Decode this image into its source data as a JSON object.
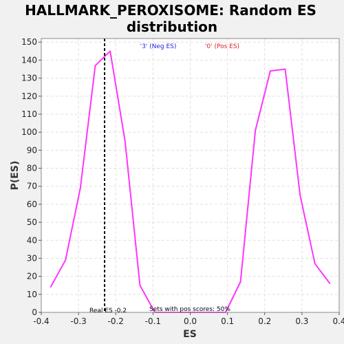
{
  "chart_data": {
    "type": "line",
    "title_line1": "HALLMARK_PEROXISOME: Random ES",
    "title_line2": "distribution",
    "xlabel": "ES",
    "ylabel": "P(ES)",
    "xlim": [
      -0.4,
      0.4
    ],
    "ylim": [
      0,
      152
    ],
    "x_ticks": [
      -0.4,
      -0.3,
      -0.2,
      -0.1,
      0.0,
      0.1,
      0.2,
      0.3,
      0.4
    ],
    "x_tick_labels": [
      "-0.4",
      "-0.3",
      "-0.2",
      "-0.1",
      "0.0",
      "0.1",
      "0.2",
      "0.3",
      "0.4"
    ],
    "y_ticks": [
      0,
      10,
      20,
      30,
      40,
      50,
      60,
      70,
      80,
      90,
      100,
      110,
      120,
      130,
      140,
      150
    ],
    "y_tick_labels": [
      "0",
      "10",
      "20",
      "30",
      "40",
      "50",
      "60",
      "70",
      "80",
      "90",
      "100",
      "110",
      "120",
      "130",
      "140",
      "150"
    ],
    "grid": true,
    "line_color": "#ff33ff",
    "series": [
      {
        "x": [
          -0.375,
          -0.335,
          -0.295,
          -0.255,
          -0.215,
          -0.175,
          -0.135,
          -0.095,
          0.095,
          0.135,
          0.175,
          0.215,
          0.255,
          0.295,
          0.335,
          0.375
        ],
        "y": [
          14,
          29,
          69,
          137,
          145,
          95,
          15,
          0,
          0,
          17,
          101,
          134,
          135,
          65,
          27,
          16
        ]
      }
    ],
    "real_es": {
      "x": -0.23,
      "label": "Real ES -0.2"
    },
    "legend_neg": {
      "text": "'3' (Neg ES)",
      "color": "#1f1fdf"
    },
    "legend_pos": {
      "text": "'0' (Pos ES)",
      "color": "#e01f1f"
    },
    "annotation": "Sets with pos scores: 50%"
  }
}
